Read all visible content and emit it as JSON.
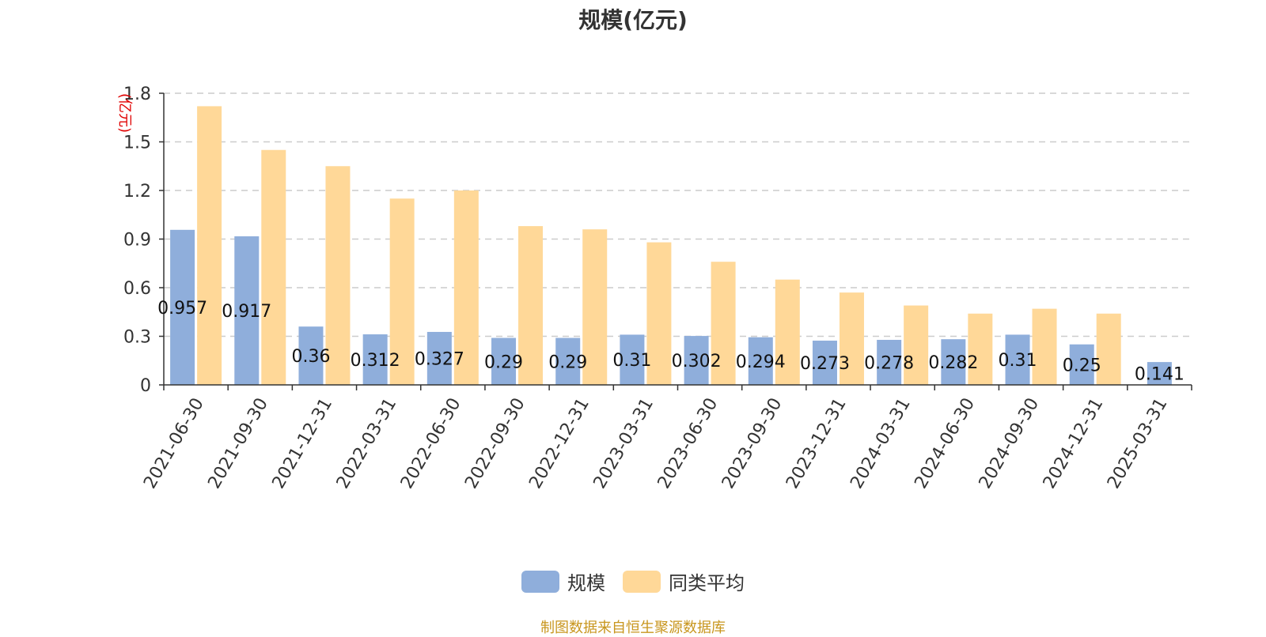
{
  "chart_data": {
    "type": "bar",
    "title": "规模(亿元)",
    "y_unit_label": "(亿元)",
    "categories": [
      "2021-06-30",
      "2021-09-30",
      "2021-12-31",
      "2022-03-31",
      "2022-06-30",
      "2022-09-30",
      "2022-12-31",
      "2023-03-31",
      "2023-06-30",
      "2023-09-30",
      "2023-12-31",
      "2024-03-31",
      "2024-06-30",
      "2024-09-30",
      "2024-12-31",
      "2025-03-31"
    ],
    "series": [
      {
        "name": "规模",
        "color": "#8faedb",
        "values": [
          0.957,
          0.917,
          0.36,
          0.312,
          0.327,
          0.29,
          0.29,
          0.31,
          0.302,
          0.294,
          0.273,
          0.278,
          0.282,
          0.31,
          0.25,
          0.141
        ],
        "data_labels": [
          "0.957",
          "0.917",
          "0.36",
          "0.312",
          "0.327",
          "0.29",
          "0.29",
          "0.31",
          "0.302",
          "0.294",
          "0.273",
          "0.278",
          "0.282",
          "0.31",
          "0.25",
          "0.141"
        ]
      },
      {
        "name": "同类平均",
        "color": "#ffd898",
        "values": [
          1.72,
          1.45,
          1.35,
          1.15,
          1.2,
          0.98,
          0.96,
          0.88,
          0.76,
          0.65,
          0.57,
          0.49,
          0.44,
          0.47,
          0.44,
          null
        ]
      }
    ],
    "ylim": [
      0,
      1.8
    ],
    "yticks": [
      0,
      0.3,
      0.6,
      0.9,
      1.2,
      1.5,
      1.8
    ],
    "ytick_labels": [
      "0",
      "0.3",
      "0.6",
      "0.9",
      "1.2",
      "1.5",
      "1.8"
    ],
    "grid": true,
    "legend_position": "bottom-center"
  },
  "source_note": "制图数据来自恒生聚源数据库"
}
